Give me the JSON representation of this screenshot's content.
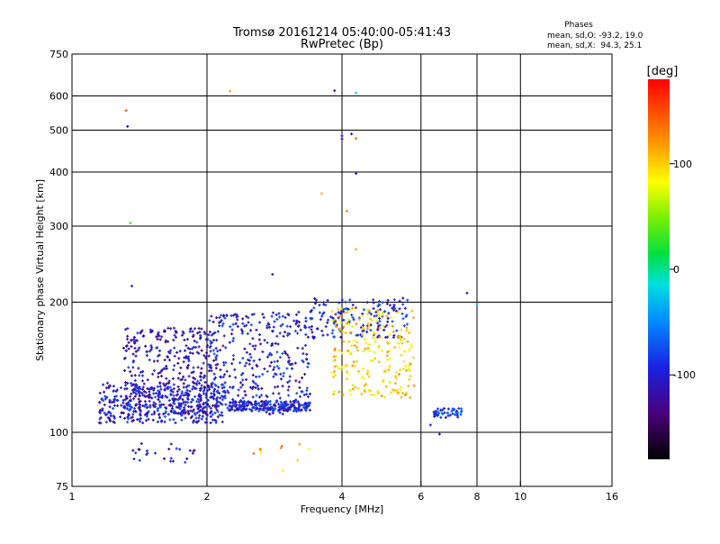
{
  "chart_data": {
    "type": "scatter",
    "title": "Tromsø 20161214 05:40:00-05:41:43",
    "subtitle": "RwPretec (Bp)",
    "xlabel": "Frequency [MHz]",
    "ylabel": "Stationary phase Virtual Height [km]",
    "x_scale": "log",
    "y_scale": "log",
    "xlim": [
      1,
      16
    ],
    "ylim": [
      75,
      750
    ],
    "x_ticks": [
      1,
      2,
      4,
      6,
      8,
      10,
      16
    ],
    "y_ticks": [
      75,
      100,
      200,
      300,
      400,
      500,
      600,
      750
    ],
    "grid": true,
    "stats": {
      "header": "Phases",
      "line1": "mean, sd,O: -93.2, 19.0",
      "line2": "mean, sd,X:  94.3, 25.1"
    },
    "colorbar": {
      "label": "[deg]",
      "min": -180,
      "max": 180,
      "ticks": [
        100,
        0,
        -100
      ]
    },
    "points_seed": 12345,
    "clusters": [
      {
        "name": "O-trace-low",
        "freq_range": [
          1.15,
          2.2
        ],
        "height_range": [
          105,
          130
        ],
        "count": 400,
        "phase": -100
      },
      {
        "name": "O-trace-spread",
        "freq_range": [
          1.3,
          2.1
        ],
        "height_range": [
          110,
          175
        ],
        "count": 350,
        "phase": -110
      },
      {
        "name": "O-mid",
        "freq_range": [
          2.0,
          3.4
        ],
        "height_range": [
          110,
          190
        ],
        "count": 350,
        "phase": -100
      },
      {
        "name": "O-band-115",
        "freq_range": [
          2.2,
          3.4
        ],
        "height_range": [
          112,
          118
        ],
        "count": 200,
        "phase": -95
      },
      {
        "name": "O-upper",
        "freq_range": [
          3.4,
          5.6
        ],
        "height_range": [
          165,
          205
        ],
        "count": 160,
        "phase": -95
      },
      {
        "name": "X-upper",
        "freq_range": [
          3.8,
          5.8
        ],
        "height_range": [
          120,
          195
        ],
        "count": 220,
        "phase": 95
      },
      {
        "name": "O-7MHz",
        "freq_range": [
          6.4,
          7.4
        ],
        "height_range": [
          108,
          114
        ],
        "count": 45,
        "phase": -80
      },
      {
        "name": "O-lower-78-95",
        "freq_range": [
          1.35,
          1.9
        ],
        "height_range": [
          85,
          95
        ],
        "count": 25,
        "phase": -110
      },
      {
        "name": "X-lower",
        "freq_range": [
          2.3,
          3.4
        ],
        "height_range": [
          78,
          95
        ],
        "count": 10,
        "phase": 110
      }
    ],
    "sparse_points": [
      {
        "f": 1.32,
        "h": 555,
        "phase": 150
      },
      {
        "f": 1.33,
        "h": 510,
        "phase": -110
      },
      {
        "f": 1.35,
        "h": 305,
        "phase": 30
      },
      {
        "f": 1.36,
        "h": 218,
        "phase": -100
      },
      {
        "f": 2.25,
        "h": 615,
        "phase": 110
      },
      {
        "f": 3.85,
        "h": 617,
        "phase": -140
      },
      {
        "f": 4.3,
        "h": 610,
        "phase": -20
      },
      {
        "f": 4.0,
        "h": 485,
        "phase": -100
      },
      {
        "f": 4.0,
        "h": 477,
        "phase": -95
      },
      {
        "f": 4.2,
        "h": 490,
        "phase": -110
      },
      {
        "f": 4.3,
        "h": 478,
        "phase": 140
      },
      {
        "f": 4.3,
        "h": 397,
        "phase": -110
      },
      {
        "f": 3.6,
        "h": 357,
        "phase": 110
      },
      {
        "f": 4.1,
        "h": 325,
        "phase": 130
      },
      {
        "f": 4.3,
        "h": 265,
        "phase": 110
      },
      {
        "f": 2.8,
        "h": 232,
        "phase": -110
      },
      {
        "f": 1.2,
        "h": 130,
        "phase": -100
      },
      {
        "f": 7.6,
        "h": 210,
        "phase": -100
      },
      {
        "f": 8.0,
        "h": 198,
        "phase": -40
      },
      {
        "f": 6.3,
        "h": 104,
        "phase": -100
      },
      {
        "f": 6.6,
        "h": 99,
        "phase": -100
      }
    ]
  }
}
